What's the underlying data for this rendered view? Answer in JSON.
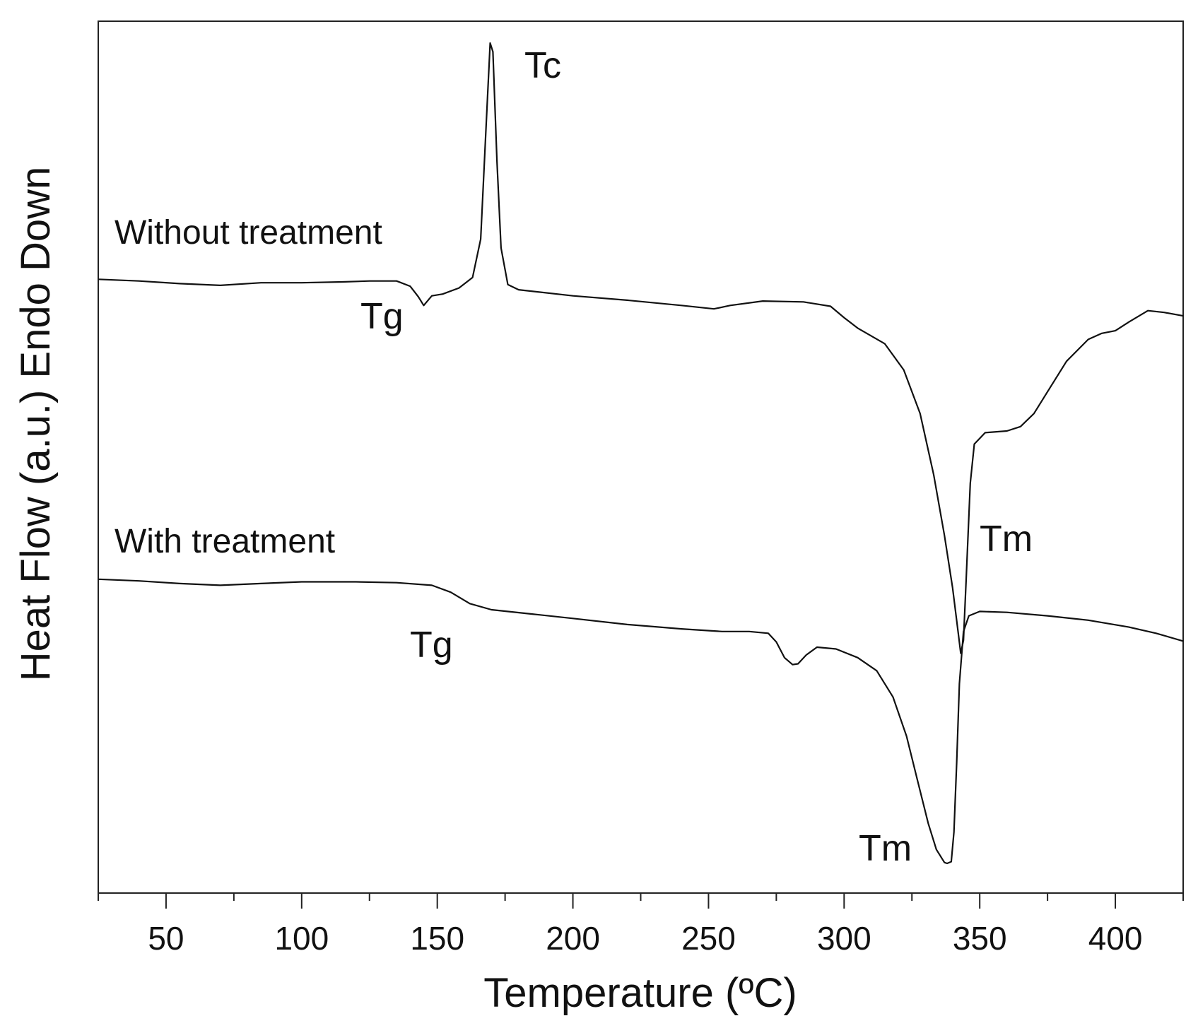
{
  "chart_data": {
    "type": "line",
    "title": "",
    "xlabel": "Temperature (ºC)",
    "ylabel": "Heat Flow (a.u.) Endo Down",
    "xlim": [
      25,
      425
    ],
    "ylim": [
      0,
      100
    ],
    "x_ticks": [
      50,
      100,
      150,
      200,
      250,
      300,
      350,
      400
    ],
    "x_tick_labels": [
      "50",
      "100",
      "150",
      "200",
      "250",
      "300",
      "350",
      "400"
    ],
    "y_ticks_shown": false,
    "grid": false,
    "legend": "none",
    "series": [
      {
        "name": "Without treatment",
        "points": [
          [
            25,
            70.4
          ],
          [
            40,
            70.2
          ],
          [
            55,
            69.9
          ],
          [
            70,
            69.7
          ],
          [
            85,
            70.0
          ],
          [
            100,
            70.0
          ],
          [
            115,
            70.1
          ],
          [
            125,
            70.2
          ],
          [
            135,
            70.2
          ],
          [
            140,
            69.6
          ],
          [
            143,
            68.4
          ],
          [
            145,
            67.4
          ],
          [
            148,
            68.5
          ],
          [
            152,
            68.7
          ],
          [
            158,
            69.4
          ],
          [
            163,
            70.6
          ],
          [
            166,
            75.0
          ],
          [
            168,
            88.0
          ],
          [
            169.5,
            97.5
          ],
          [
            170.5,
            96.5
          ],
          [
            172,
            84.0
          ],
          [
            173.5,
            74.0
          ],
          [
            176,
            69.8
          ],
          [
            180,
            69.2
          ],
          [
            200,
            68.5
          ],
          [
            220,
            68.0
          ],
          [
            240,
            67.4
          ],
          [
            252,
            67.0
          ],
          [
            258,
            67.4
          ],
          [
            270,
            67.9
          ],
          [
            285,
            67.8
          ],
          [
            295,
            67.3
          ],
          [
            300,
            66.0
          ],
          [
            305,
            64.8
          ],
          [
            315,
            63.0
          ],
          [
            322,
            60.0
          ],
          [
            328,
            55.0
          ],
          [
            333,
            48.0
          ],
          [
            337,
            41.0
          ],
          [
            340,
            35.0
          ],
          [
            342,
            30.0
          ],
          [
            343,
            27.5
          ],
          [
            344,
            29.0
          ],
          [
            345,
            36.0
          ],
          [
            346.5,
            47.0
          ],
          [
            348,
            51.5
          ],
          [
            352,
            52.8
          ],
          [
            360,
            53.0
          ],
          [
            365,
            53.5
          ],
          [
            370,
            55.0
          ],
          [
            375,
            57.5
          ],
          [
            382,
            61.0
          ],
          [
            390,
            63.5
          ],
          [
            395,
            64.2
          ],
          [
            400,
            64.5
          ],
          [
            405,
            65.5
          ],
          [
            412,
            66.8
          ],
          [
            418,
            66.6
          ],
          [
            425,
            66.2
          ]
        ]
      },
      {
        "name": "With treatment",
        "points": [
          [
            25,
            36.0
          ],
          [
            40,
            35.8
          ],
          [
            55,
            35.5
          ],
          [
            70,
            35.3
          ],
          [
            85,
            35.5
          ],
          [
            100,
            35.7
          ],
          [
            120,
            35.7
          ],
          [
            135,
            35.6
          ],
          [
            148,
            35.3
          ],
          [
            155,
            34.5
          ],
          [
            162,
            33.2
          ],
          [
            170,
            32.5
          ],
          [
            185,
            32.0
          ],
          [
            200,
            31.5
          ],
          [
            220,
            30.8
          ],
          [
            240,
            30.3
          ],
          [
            255,
            30.0
          ],
          [
            265,
            30.0
          ],
          [
            272,
            29.8
          ],
          [
            275,
            28.8
          ],
          [
            278,
            27.0
          ],
          [
            281,
            26.2
          ],
          [
            283,
            26.3
          ],
          [
            286,
            27.3
          ],
          [
            290,
            28.2
          ],
          [
            297,
            28.0
          ],
          [
            305,
            27.0
          ],
          [
            312,
            25.5
          ],
          [
            318,
            22.5
          ],
          [
            323,
            18.0
          ],
          [
            327,
            13.0
          ],
          [
            331,
            8.0
          ],
          [
            334,
            5.0
          ],
          [
            337,
            3.5
          ],
          [
            338,
            3.4
          ],
          [
            339.5,
            3.6
          ],
          [
            340.5,
            7.0
          ],
          [
            341.5,
            15.0
          ],
          [
            342.5,
            24.0
          ],
          [
            344,
            30.0
          ],
          [
            346,
            31.8
          ],
          [
            350,
            32.3
          ],
          [
            360,
            32.2
          ],
          [
            375,
            31.8
          ],
          [
            390,
            31.3
          ],
          [
            405,
            30.5
          ],
          [
            415,
            29.8
          ],
          [
            425,
            28.9
          ]
        ]
      }
    ],
    "series_labels": {
      "without": "Without treatment",
      "with": "With treatment"
    },
    "annotations": {
      "tc_upper": "Tc",
      "tg_upper": "Tg",
      "tm_upper": "Tm",
      "tg_lower": "Tg",
      "tm_lower": "Tm"
    }
  }
}
